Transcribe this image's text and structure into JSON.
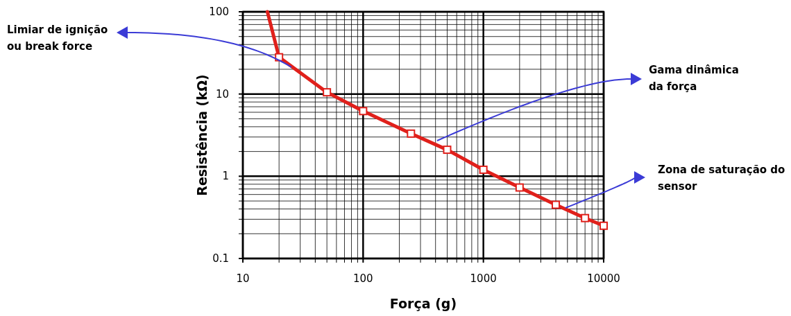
{
  "chart_data": {
    "type": "line",
    "xlabel": "Força (g)",
    "ylabel": "Resistência (kΩ)",
    "log": "xy",
    "grid": true,
    "xlim": [
      10,
      10000
    ],
    "ylim": [
      0.1,
      100
    ],
    "xticks": [
      10,
      {
        "value": 20,
        "label": null
      },
      {
        "value": 30,
        "label": null
      },
      {
        "value": 40,
        "label": null
      },
      {
        "value": 50,
        "label": null
      },
      {
        "value": 60,
        "label": null
      },
      {
        "value": 70,
        "label": null
      },
      {
        "value": 80,
        "label": null
      },
      {
        "value": 90,
        "label": null
      },
      100,
      {
        "value": 200,
        "label": null
      },
      {
        "value": 300,
        "label": null
      },
      {
        "value": 400,
        "label": null
      },
      {
        "value": 500,
        "label": null
      },
      {
        "value": 600,
        "label": null
      },
      {
        "value": 700,
        "label": null
      },
      {
        "value": 800,
        "label": null
      },
      {
        "value": 900,
        "label": null
      },
      1000,
      {
        "value": 2000,
        "label": null
      },
      {
        "value": 3000,
        "label": null
      },
      {
        "value": 4000,
        "label": null
      },
      {
        "value": 5000,
        "label": null
      },
      {
        "value": 6000,
        "label": null
      },
      {
        "value": 7000,
        "label": null
      },
      {
        "value": 8000,
        "label": null
      },
      {
        "value": 9000,
        "label": null
      },
      10000
    ],
    "yticks": [
      0.1,
      {
        "value": 0.2,
        "label": null
      },
      {
        "value": 0.3,
        "label": null
      },
      {
        "value": 0.4,
        "label": null
      },
      {
        "value": 0.5,
        "label": null
      },
      {
        "value": 0.6,
        "label": null
      },
      {
        "value": 0.7,
        "label": null
      },
      {
        "value": 0.8,
        "label": null
      },
      {
        "value": 0.9,
        "label": null
      },
      1,
      {
        "value": 2,
        "label": null
      },
      {
        "value": 3,
        "label": null
      },
      {
        "value": 4,
        "label": null
      },
      {
        "value": 5,
        "label": null
      },
      {
        "value": 6,
        "label": null
      },
      {
        "value": 7,
        "label": null
      },
      {
        "value": 8,
        "label": null
      },
      {
        "value": 9,
        "label": null
      },
      10,
      {
        "value": 20,
        "label": null
      },
      {
        "value": 30,
        "label": null
      },
      {
        "value": 40,
        "label": null
      },
      {
        "value": 50,
        "label": null
      },
      {
        "value": 60,
        "label": null
      },
      {
        "value": 70,
        "label": null
      },
      {
        "value": 80,
        "label": null
      },
      {
        "value": 90,
        "label": null
      },
      100
    ],
    "series": [
      {
        "type": "line",
        "color": "#e0201b",
        "marker": "none",
        "x": [
          16,
          20,
          50,
          100,
          250,
          500,
          1000,
          2000,
          4000,
          7000,
          10000
        ],
        "values": [
          100,
          28,
          10.5,
          6.2,
          3.3,
          2.1,
          1.2,
          0.73,
          0.45,
          0.31,
          0.25
        ]
      },
      {
        "type": "scatter",
        "color": "#e0201b",
        "marker": "square",
        "x": [
          20,
          50,
          100,
          250,
          500,
          1000,
          2000,
          4000,
          7000,
          10000
        ],
        "values": [
          28,
          10.5,
          6.2,
          3.3,
          2.1,
          1.2,
          0.73,
          0.45,
          0.31,
          0.25
        ]
      }
    ],
    "annotations": [
      "Limiar de ignição\nou break force",
      "Gama dinâmica\nda força",
      "Zona de saturação do\nsensor"
    ]
  }
}
